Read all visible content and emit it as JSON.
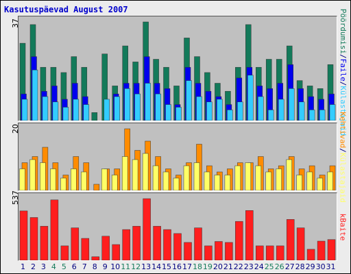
{
  "title": "Kasutuspäevad August 2007",
  "colors": {
    "visits": "#137a5a",
    "pages": "#0000ee",
    "hits": "#33ccff",
    "bandwidth": "#ff1e1e",
    "errors": "#ff8c00",
    "hosts": "#ffff66",
    "weekend": "#137a5a",
    "weekday": "#000080"
  },
  "chart_data": [
    {
      "type": "bar",
      "ymax_label": "37",
      "legend": [
        {
          "text": "Pöördumisi",
          "color": "#137a5a"
        },
        {
          "text": "/",
          "color": "#000080"
        },
        {
          "text": "Faile",
          "color": "#0000ee"
        },
        {
          "text": "/",
          "color": "#000080"
        },
        {
          "text": "Külastajaid",
          "color": "#33ccff"
        }
      ],
      "categories": [
        "1",
        "2",
        "3",
        "4",
        "5",
        "6",
        "7",
        "8",
        "9",
        "10",
        "11",
        "12",
        "13",
        "14",
        "15",
        "16",
        "17",
        "18",
        "19",
        "20",
        "21",
        "22",
        "23",
        "24",
        "25",
        "26",
        "27",
        "28",
        "29",
        "30",
        "31"
      ],
      "series": [
        {
          "name": "Pöördumisi",
          "values": [
            29,
            36,
            20,
            20,
            18,
            24,
            20,
            3,
            25,
            13,
            28,
            22,
            37,
            23,
            20,
            13,
            31,
            24,
            18,
            14,
            11,
            20,
            36,
            20,
            23,
            23,
            28,
            15,
            13,
            12,
            21
          ]
        },
        {
          "name": "Faile",
          "values": [
            10,
            24,
            11,
            13,
            8,
            14,
            9,
            0,
            0,
            10,
            14,
            14,
            24,
            14,
            12,
            6,
            20,
            14,
            11,
            9,
            6,
            16,
            20,
            13,
            12,
            14,
            21,
            12,
            9,
            8,
            10
          ]
        },
        {
          "name": "Külastajaid",
          "values": [
            8,
            19,
            9,
            7,
            5,
            8,
            6,
            0,
            8,
            9,
            12,
            10,
            14,
            10,
            6,
            5,
            15,
            9,
            7,
            8,
            4,
            7,
            17,
            9,
            4,
            8,
            12,
            7,
            4,
            4,
            6
          ]
        }
      ],
      "ylim": [
        0,
        37
      ]
    },
    {
      "type": "bar",
      "ymax_label": "20",
      "legend": [
        {
          "text": "Kehtivad",
          "color": "#ff8c00"
        },
        {
          "text": "/",
          "color": "#000080"
        },
        {
          "text": "Külastajaid",
          "color": "#ffff66"
        }
      ],
      "categories": [
        "1",
        "2",
        "3",
        "4",
        "5",
        "6",
        "7",
        "8",
        "9",
        "10",
        "11",
        "12",
        "13",
        "14",
        "15",
        "16",
        "17",
        "18",
        "19",
        "20",
        "21",
        "22",
        "23",
        "24",
        "25",
        "26",
        "27",
        "28",
        "29",
        "30",
        "31"
      ],
      "series": [
        {
          "name": "Kehtivad",
          "values": [
            9,
            11,
            14,
            9,
            5,
            11,
            9,
            2,
            7,
            7,
            20,
            13,
            16,
            11,
            7,
            5,
            9,
            15,
            8,
            6,
            7,
            9,
            9,
            11,
            7,
            8,
            11,
            7,
            8,
            5,
            8
          ]
        },
        {
          "name": "Külastajaid",
          "values": [
            7,
            10,
            9,
            7,
            4,
            7,
            6,
            0,
            7,
            5,
            11,
            10,
            12,
            8,
            6,
            4,
            8,
            9,
            6,
            5,
            5,
            8,
            9,
            8,
            6,
            7,
            10,
            5,
            6,
            4,
            6
          ]
        }
      ],
      "ylim": [
        0,
        20
      ]
    },
    {
      "type": "bar",
      "ymax_label": "537",
      "legend": [
        {
          "text": "kBaite",
          "color": "#ff1e1e"
        }
      ],
      "categories": [
        "1",
        "2",
        "3",
        "4",
        "5",
        "6",
        "7",
        "8",
        "9",
        "10",
        "11",
        "12",
        "13",
        "14",
        "15",
        "16",
        "17",
        "18",
        "19",
        "20",
        "21",
        "22",
        "23",
        "24",
        "25",
        "26",
        "27",
        "28",
        "29",
        "30",
        "31"
      ],
      "series": [
        {
          "name": "kBaite",
          "values": [
            430,
            373,
            297,
            526,
            126,
            283,
            191,
            31,
            210,
            137,
            268,
            297,
            537,
            297,
            268,
            233,
            156,
            283,
            126,
            164,
            156,
            339,
            434,
            126,
            126,
            126,
            356,
            283,
            96,
            167,
            181
          ]
        }
      ],
      "ylim": [
        0,
        537
      ]
    }
  ],
  "weekend_days": [
    "4",
    "5",
    "11",
    "12",
    "18",
    "19",
    "25",
    "26"
  ]
}
